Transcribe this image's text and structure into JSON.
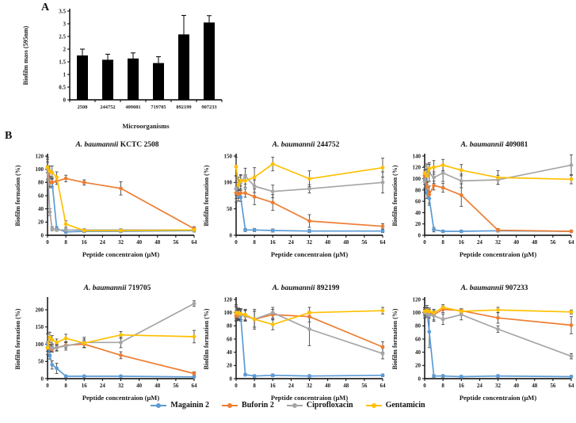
{
  "figure": {
    "panel_a_label": "A",
    "panel_b_label": "B"
  },
  "legend": {
    "items": [
      {
        "key": "magainin2",
        "label": "Magainin 2",
        "color": "#5B9BD5"
      },
      {
        "key": "buforin2",
        "label": "Buforin 2",
        "color": "#ED7D31"
      },
      {
        "key": "ciprofloxacin",
        "label": "Ciprofloxacin",
        "color": "#A5A5A5"
      },
      {
        "key": "gentamicin",
        "label": "Gentamicin",
        "color": "#FFC000"
      }
    ]
  },
  "chart_data": [
    {
      "type": "bar",
      "title": "",
      "categories": [
        "2508",
        "244752",
        "409081",
        "719705",
        "892199",
        "907233"
      ],
      "values": [
        1.75,
        1.58,
        1.63,
        1.45,
        2.58,
        3.05
      ],
      "errors": [
        0.25,
        0.22,
        0.22,
        0.25,
        0.75,
        0.27
      ],
      "xlabel": "Microorganisms",
      "ylabel": "Biofilm mass (595nm)",
      "ylim": [
        0,
        3.5
      ],
      "yticks": [
        0,
        0.5,
        1,
        1.5,
        2,
        2.5,
        3,
        3.5
      ],
      "bar_color": "#000000"
    },
    {
      "type": "line",
      "title_italic": "A. baumannii",
      "title_rest": "KCTC 2508",
      "xlabel": "Peptide concentraion (μM)",
      "ylabel": "Biofilm formation (%)",
      "x": [
        0,
        1,
        2,
        4,
        8,
        16,
        32,
        64
      ],
      "xticks": [
        0,
        8,
        16,
        24,
        32,
        40,
        48,
        56,
        64
      ],
      "xlim": [
        0,
        64
      ],
      "ylim": [
        0,
        120
      ],
      "yticks": [
        0,
        20,
        40,
        60,
        80,
        100,
        120
      ],
      "series": [
        {
          "name": "Magainin 2",
          "key": "magainin2",
          "values": [
            100,
            80,
            80,
            10,
            5,
            6,
            6,
            7
          ],
          "errors": [
            18,
            8,
            8,
            3,
            2,
            2,
            2,
            2
          ]
        },
        {
          "name": "Buforin 2",
          "key": "buforin2",
          "values": [
            100,
            80,
            80,
            82,
            86,
            80,
            71,
            10
          ],
          "errors": [
            5,
            6,
            6,
            5,
            5,
            4,
            10,
            3
          ]
        },
        {
          "name": "Ciprofloxacin",
          "key": "ciprofloxacin",
          "values": [
            100,
            35,
            10,
            8,
            8,
            8,
            8,
            8
          ],
          "errors": [
            15,
            5,
            3,
            2,
            2,
            2,
            2,
            2
          ]
        },
        {
          "name": "Gentamicin",
          "key": "gentamicin",
          "values": [
            103,
            97,
            95,
            88,
            17,
            7,
            7,
            8
          ],
          "errors": [
            8,
            8,
            10,
            8,
            5,
            2,
            2,
            2
          ]
        }
      ]
    },
    {
      "type": "line",
      "title_italic": "A. baumannii",
      "title_rest": "244752",
      "xlabel": "Peptide concentraion (μM)",
      "ylabel": "Biofilm formation (%)",
      "x": [
        0,
        1,
        2,
        4,
        8,
        16,
        32,
        64
      ],
      "xticks": [
        0,
        8,
        16,
        24,
        32,
        40,
        48,
        56,
        64
      ],
      "xlim": [
        0,
        64
      ],
      "ylim": [
        0,
        150
      ],
      "yticks": [
        0,
        50,
        100,
        150
      ],
      "series": [
        {
          "name": "Magainin 2",
          "key": "magainin2",
          "values": [
            88,
            75,
            72,
            10,
            10,
            9,
            8,
            8
          ],
          "errors": [
            25,
            10,
            8,
            3,
            3,
            3,
            3,
            3
          ]
        },
        {
          "name": "Buforin 2",
          "key": "buforin2",
          "values": [
            80,
            78,
            80,
            80,
            73,
            62,
            27,
            17
          ],
          "errors": [
            10,
            8,
            8,
            8,
            15,
            15,
            12,
            5
          ]
        },
        {
          "name": "Ciprofloxacin",
          "key": "ciprofloxacin",
          "values": [
            88,
            95,
            100,
            112,
            93,
            83,
            88,
            100
          ],
          "errors": [
            12,
            15,
            15,
            15,
            12,
            12,
            8,
            20
          ]
        },
        {
          "name": "Gentamicin",
          "key": "gentamicin",
          "values": [
            130,
            95,
            103,
            103,
            110,
            135,
            107,
            128
          ],
          "errors": [
            18,
            10,
            10,
            12,
            18,
            13,
            15,
            18
          ]
        }
      ]
    },
    {
      "type": "line",
      "title_italic": "A. baumannii",
      "title_rest": "409081",
      "xlabel": "Peptide concentraion (μM)",
      "ylabel": "Biofilm formation (%)",
      "x": [
        0,
        1,
        2,
        4,
        8,
        16,
        32,
        64
      ],
      "xticks": [
        0,
        8,
        16,
        24,
        32,
        40,
        48,
        56,
        64
      ],
      "xlim": [
        0,
        64
      ],
      "ylim": [
        0,
        140
      ],
      "yticks": [
        0,
        20,
        40,
        60,
        80,
        100,
        120,
        140
      ],
      "series": [
        {
          "name": "Magainin 2",
          "key": "magainin2",
          "values": [
            100,
            75,
            65,
            10,
            7,
            7,
            8,
            7
          ],
          "errors": [
            10,
            10,
            12,
            4,
            2,
            2,
            2,
            2
          ]
        },
        {
          "name": "Buforin 2",
          "key": "buforin2",
          "values": [
            105,
            85,
            72,
            88,
            84,
            71,
            9,
            7
          ],
          "errors": [
            10,
            10,
            15,
            8,
            8,
            20,
            3,
            2
          ]
        },
        {
          "name": "Ciprofloxacin",
          "key": "ciprofloxacin",
          "values": [
            95,
            108,
            110,
            102,
            110,
            96,
            98,
            124
          ],
          "errors": [
            12,
            18,
            15,
            10,
            15,
            12,
            8,
            18
          ]
        },
        {
          "name": "Gentamicin",
          "key": "gentamicin",
          "values": [
            110,
            105,
            118,
            120,
            124,
            115,
            102,
            99
          ],
          "errors": [
            12,
            12,
            10,
            12,
            10,
            10,
            12,
            8
          ]
        }
      ]
    },
    {
      "type": "line",
      "title_italic": "A. baumannii",
      "title_rest": "719705",
      "xlabel": "Peptide concentraion (μM)",
      "ylabel": "Biofilm formation (%)",
      "x": [
        0,
        1,
        2,
        4,
        8,
        16,
        32,
        64
      ],
      "xticks": [
        0,
        8,
        16,
        24,
        32,
        40,
        48,
        56,
        64
      ],
      "xlim": [
        0,
        64
      ],
      "ylim": [
        0,
        230
      ],
      "yticks": [
        0,
        50,
        100,
        150,
        200
      ],
      "series": [
        {
          "name": "Magainin 2",
          "key": "magainin2",
          "values": [
            100,
            67,
            40,
            30,
            7,
            7,
            7,
            5
          ],
          "errors": [
            30,
            10,
            12,
            15,
            3,
            3,
            3,
            2
          ]
        },
        {
          "name": "Buforin 2",
          "key": "buforin2",
          "values": [
            90,
            88,
            85,
            90,
            97,
            100,
            68,
            15
          ],
          "errors": [
            10,
            8,
            8,
            8,
            8,
            10,
            10,
            5
          ]
        },
        {
          "name": "Ciprofloxacin",
          "key": "ciprofloxacin",
          "values": [
            105,
            90,
            88,
            90,
            95,
            105,
            105,
            218
          ],
          "errors": [
            25,
            10,
            10,
            10,
            12,
            15,
            15,
            8
          ]
        },
        {
          "name": "Gentamicin",
          "key": "gentamicin",
          "values": [
            90,
            120,
            113,
            105,
            117,
            103,
            127,
            122
          ],
          "errors": [
            10,
            15,
            12,
            10,
            12,
            12,
            10,
            18
          ]
        }
      ]
    },
    {
      "type": "line",
      "title_italic": "A. baumannii",
      "title_rest": "892199",
      "xlabel": "Peptide concentraion (μM)",
      "ylabel": "Biofilm formation (%)",
      "x": [
        0,
        1,
        2,
        4,
        8,
        16,
        32,
        64
      ],
      "xticks": [
        0,
        8,
        16,
        24,
        32,
        40,
        48,
        56,
        64
      ],
      "xlim": [
        0,
        64
      ],
      "ylim": [
        0,
        120
      ],
      "yticks": [
        0,
        20,
        40,
        60,
        80,
        100,
        120
      ],
      "series": [
        {
          "name": "Magainin 2",
          "key": "magainin2",
          "values": [
            100,
            97,
            95,
            6,
            4,
            5,
            4,
            5
          ],
          "errors": [
            12,
            8,
            8,
            2,
            2,
            2,
            2,
            2
          ]
        },
        {
          "name": "Buforin 2",
          "key": "buforin2",
          "values": [
            95,
            96,
            98,
            95,
            90,
            97,
            94,
            48
          ],
          "errors": [
            8,
            8,
            8,
            8,
            12,
            8,
            8,
            8
          ]
        },
        {
          "name": "Ciprofloxacin",
          "key": "ciprofloxacin",
          "values": [
            100,
            98,
            97,
            96,
            90,
            100,
            75,
            38
          ],
          "errors": [
            10,
            8,
            8,
            8,
            15,
            8,
            25,
            8
          ]
        },
        {
          "name": "Gentamicin",
          "key": "gentamicin",
          "values": [
            100,
            99,
            98,
            97,
            90,
            82,
            100,
            103
          ],
          "errors": [
            8,
            8,
            8,
            8,
            12,
            8,
            8,
            5
          ]
        }
      ]
    },
    {
      "type": "line",
      "title_italic": "A. baumannii",
      "title_rest": "907233",
      "xlabel": "Peptide concentraion (μM)",
      "ylabel": "Biofilm formation (%)",
      "x": [
        0,
        1,
        2,
        4,
        8,
        16,
        32,
        64
      ],
      "xticks": [
        0,
        8,
        16,
        24,
        32,
        40,
        48,
        56,
        64
      ],
      "xlim": [
        0,
        64
      ],
      "ylim": [
        0,
        120
      ],
      "yticks": [
        0,
        20,
        40,
        60,
        80,
        100,
        120
      ],
      "series": [
        {
          "name": "Magainin 2",
          "key": "magainin2",
          "values": [
            100,
            103,
            71,
            4,
            4,
            3,
            4,
            3
          ],
          "errors": [
            8,
            8,
            24,
            2,
            2,
            2,
            2,
            2
          ]
        },
        {
          "name": "Buforin 2",
          "key": "buforin2",
          "values": [
            100,
            102,
            100,
            97,
            105,
            103,
            92,
            81
          ],
          "errors": [
            5,
            5,
            5,
            8,
            5,
            3,
            8,
            13
          ]
        },
        {
          "name": "Ciprofloxacin",
          "key": "ciprofloxacin",
          "values": [
            100,
            98,
            97,
            95,
            90,
            97,
            75,
            34
          ],
          "errors": [
            8,
            5,
            5,
            8,
            8,
            8,
            5,
            4
          ]
        },
        {
          "name": "Gentamicin",
          "key": "gentamicin",
          "values": [
            102,
            103,
            102,
            100,
            108,
            102,
            104,
            101
          ],
          "errors": [
            5,
            5,
            5,
            5,
            4,
            3,
            4,
            3
          ]
        }
      ]
    }
  ]
}
